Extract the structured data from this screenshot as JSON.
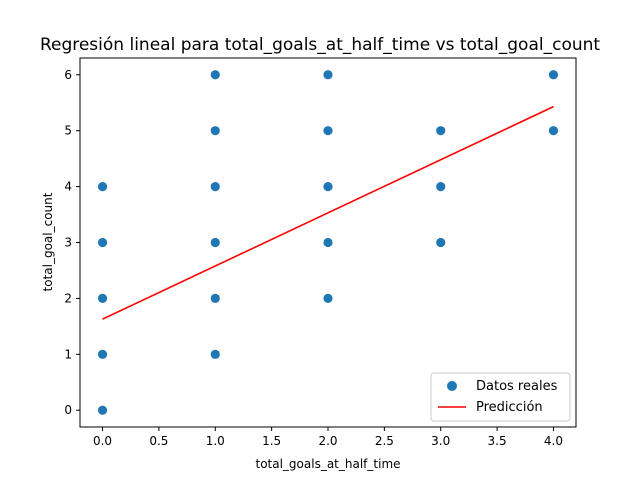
{
  "chart_data": {
    "type": "scatter",
    "title": "Regresión lineal para total_goals_at_half_time vs total_goal_count",
    "xlabel": "total_goals_at_half_time",
    "ylabel": "total_goal_count",
    "xlim": [
      -0.2,
      4.2
    ],
    "ylim": [
      -0.3,
      6.3
    ],
    "xticks": [
      "0.0",
      "0.5",
      "1.0",
      "1.5",
      "2.0",
      "2.5",
      "3.0",
      "3.5",
      "4.0"
    ],
    "yticks": [
      "0",
      "1",
      "2",
      "3",
      "4",
      "5",
      "6"
    ],
    "grid": false,
    "legend_position": "lower right",
    "series": [
      {
        "name": "Datos reales",
        "kind": "scatter",
        "color": "#1f77b4",
        "points": [
          [
            0,
            0
          ],
          [
            0,
            1
          ],
          [
            0,
            2
          ],
          [
            0,
            3
          ],
          [
            0,
            4
          ],
          [
            1,
            1
          ],
          [
            1,
            2
          ],
          [
            1,
            3
          ],
          [
            1,
            4
          ],
          [
            1,
            5
          ],
          [
            1,
            6
          ],
          [
            2,
            2
          ],
          [
            2,
            3
          ],
          [
            2,
            4
          ],
          [
            2,
            5
          ],
          [
            2,
            6
          ],
          [
            3,
            3
          ],
          [
            3,
            4
          ],
          [
            3,
            5
          ],
          [
            4,
            5
          ],
          [
            4,
            6
          ]
        ]
      },
      {
        "name": "Predicción",
        "kind": "line",
        "color": "#ff0000",
        "points": [
          [
            0,
            1.63
          ],
          [
            4,
            5.43
          ]
        ]
      }
    ]
  }
}
